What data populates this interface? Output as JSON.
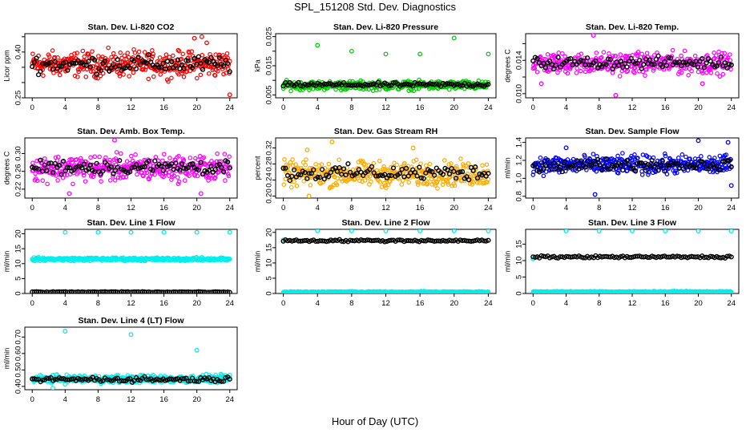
{
  "figure": {
    "title": "SPL_151208  Std. Dev. Diagnostics",
    "xlabel": "Hour of Day (UTC)"
  },
  "chart_data": [
    {
      "type": "scatter",
      "title": "Stan. Dev. Li-820 CO2",
      "ylabel": "Licor ppm",
      "xlim": [
        -0.9,
        24.9
      ],
      "ylim": [
        0.25,
        0.46
      ],
      "xticks": [
        0,
        4,
        8,
        12,
        16,
        20,
        24
      ],
      "yticks": [
        0.25,
        0.3,
        0.35,
        0.4,
        0.45
      ],
      "yticklabels": [
        "0.25",
        "",
        "",
        "0.40",
        ""
      ],
      "series": [
        {
          "color": "#ff0000",
          "role": "primary",
          "x": [
            0,
            24
          ],
          "y_band": [
            0.3,
            0.42
          ],
          "outliers": [
            [
              19.7,
              0.445
            ],
            [
              20.6,
              0.45
            ],
            [
              21.2,
              0.43
            ],
            [
              24,
              0.26
            ]
          ]
        },
        {
          "color": "#000000",
          "role": "hourly",
          "x": [
            0,
            24
          ],
          "y_band": [
            0.32,
            0.4
          ],
          "outliers": []
        }
      ]
    },
    {
      "type": "scatter",
      "title": "Stan. Dev. Li-820 Pressure",
      "ylabel": "kPa",
      "xlim": [
        -0.9,
        24.9
      ],
      "ylim": [
        0.004,
        0.026
      ],
      "xticks": [
        0,
        4,
        8,
        12,
        16,
        20,
        24
      ],
      "yticks": [
        0.005,
        0.01,
        0.015,
        0.02,
        0.025
      ],
      "yticklabels": [
        "0.005",
        "",
        "0.015",
        "",
        "0.025"
      ],
      "series": [
        {
          "color": "#00cc00",
          "role": "primary",
          "x": [
            0,
            24
          ],
          "y_band": [
            0.006,
            0.0105
          ],
          "outliers": [
            [
              4,
              0.022
            ],
            [
              8,
              0.02
            ],
            [
              12,
              0.019
            ],
            [
              16,
              0.019
            ],
            [
              20,
              0.0245
            ],
            [
              24,
              0.019
            ]
          ]
        },
        {
          "color": "#000000",
          "role": "hourly",
          "x": [
            0,
            24
          ],
          "y_band": [
            0.0075,
            0.0095
          ],
          "outliers": []
        }
      ]
    },
    {
      "type": "scatter",
      "title": "Stan. Dev. Li-820 Temp.",
      "ylabel": "degrees C",
      "xlim": [
        -0.9,
        24.9
      ],
      "ylim": [
        0.0095,
        0.0172
      ],
      "xticks": [
        0,
        4,
        8,
        12,
        16,
        20,
        24
      ],
      "yticks": [
        0.01,
        0.012,
        0.014,
        0.016
      ],
      "yticklabels": [
        "0.010",
        "",
        "0.014",
        ""
      ],
      "series": [
        {
          "color": "#ff00ff",
          "role": "primary",
          "x": [
            0,
            24
          ],
          "y_band": [
            0.0118,
            0.0155
          ],
          "outliers": [
            [
              7.3,
              0.017
            ],
            [
              10,
              0.0098
            ],
            [
              1,
              0.0112
            ],
            [
              20.5,
              0.0112
            ]
          ]
        },
        {
          "color": "#000000",
          "role": "hourly",
          "x": [
            0,
            24
          ],
          "y_band": [
            0.0127,
            0.0147
          ],
          "outliers": []
        }
      ]
    },
    {
      "type": "scatter",
      "title": "Stan. Dev. Amb. Box Temp.",
      "ylabel": "degrees C",
      "xlim": [
        -0.9,
        24.9
      ],
      "ylim": [
        0.2,
        0.335
      ],
      "xticks": [
        0,
        4,
        8,
        12,
        16,
        20,
        24
      ],
      "yticks": [
        0.22,
        0.26,
        0.3
      ],
      "yticklabels": [
        "0.22",
        "0.26",
        "0.30"
      ],
      "series": [
        {
          "color": "#ff00ff",
          "role": "primary",
          "x": [
            0,
            24
          ],
          "y_band": [
            0.225,
            0.31
          ],
          "outliers": [
            [
              10,
              0.33
            ],
            [
              4.5,
              0.21
            ],
            [
              20.5,
              0.21
            ]
          ]
        },
        {
          "color": "#000000",
          "role": "hourly",
          "x": [
            0,
            24
          ],
          "y_band": [
            0.245,
            0.295
          ],
          "outliers": []
        }
      ]
    },
    {
      "type": "scatter",
      "title": "Stan. Dev. Gas Stream RH",
      "ylabel": "percent",
      "xlim": [
        -0.9,
        24.9
      ],
      "ylim": [
        0.195,
        0.345
      ],
      "xticks": [
        0,
        4,
        8,
        12,
        16,
        20,
        24
      ],
      "yticks": [
        0.2,
        0.24,
        0.28,
        0.32
      ],
      "yticklabels": [
        "0.20",
        "0.24",
        "0.28",
        "0.32"
      ],
      "series": [
        {
          "color": "#ffaa00",
          "role": "primary",
          "x": [
            0,
            24
          ],
          "y_band": [
            0.21,
            0.3
          ],
          "outliers": [
            [
              2.8,
              0.315
            ],
            [
              5.7,
              0.335
            ],
            [
              15.2,
              0.32
            ],
            [
              3,
              0.2
            ]
          ]
        },
        {
          "color": "#000000",
          "role": "hourly",
          "x": [
            0,
            24
          ],
          "y_band": [
            0.23,
            0.285
          ],
          "outliers": []
        }
      ]
    },
    {
      "type": "scatter",
      "title": "Stan. Dev. Sample Flow",
      "ylabel": "ml/min",
      "xlim": [
        -0.9,
        24.9
      ],
      "ylim": [
        0.78,
        1.45
      ],
      "xticks": [
        0,
        4,
        8,
        12,
        16,
        20,
        24
      ],
      "yticks": [
        0.8,
        1.0,
        1.2,
        1.4
      ],
      "yticklabels": [
        "0.8",
        "1.0",
        "1.2",
        "1.4"
      ],
      "series": [
        {
          "color": "#0000ff",
          "role": "primary",
          "x": [
            0,
            24
          ],
          "y_band": [
            1.0,
            1.3
          ],
          "outliers": [
            [
              7.5,
              0.82
            ],
            [
              20,
              1.42
            ],
            [
              23.6,
              1.4
            ],
            [
              4,
              1.34
            ],
            [
              24,
              0.92
            ]
          ]
        },
        {
          "color": "#000000",
          "role": "hourly",
          "x": [
            0,
            24
          ],
          "y_band": [
            1.05,
            1.25
          ],
          "outliers": []
        }
      ]
    },
    {
      "type": "scatter",
      "title": "Stan. Dev. Line 1 Flow",
      "ylabel": "ml/min",
      "xlim": [
        -0.9,
        24.9
      ],
      "ylim": [
        0,
        21.5
      ],
      "xticks": [
        0,
        4,
        8,
        12,
        16,
        20,
        24
      ],
      "yticks": [
        0,
        5,
        10,
        15,
        20
      ],
      "yticklabels": [
        "0",
        "5",
        "10",
        "15",
        "20"
      ],
      "series": [
        {
          "color": "#00eeee",
          "role": "primary",
          "x": [
            0,
            24
          ],
          "y_band": [
            10.7,
            12.3
          ],
          "outliers": [
            [
              4,
              20.5
            ],
            [
              8,
              20.5
            ],
            [
              12,
              20.5
            ],
            [
              16,
              20.5
            ],
            [
              20,
              20.5
            ],
            [
              24,
              20.5
            ]
          ]
        },
        {
          "color": "#000000",
          "role": "hourly",
          "x": [
            0,
            24
          ],
          "y_band": [
            0.3,
            0.7
          ],
          "outliers": []
        }
      ]
    },
    {
      "type": "scatter",
      "title": "Stan. Dev. Line 2 Flow",
      "ylabel": "ml/min",
      "xlim": [
        -0.9,
        24.9
      ],
      "ylim": [
        0,
        21
      ],
      "xticks": [
        0,
        4,
        8,
        12,
        16,
        20,
        24
      ],
      "yticks": [
        0,
        5,
        10,
        15,
        20
      ],
      "yticklabels": [
        "0",
        "5",
        "10",
        "15",
        "20"
      ],
      "series": [
        {
          "color": "#00eeee",
          "role": "primary",
          "x": [
            0,
            24
          ],
          "y_band": [
            0.2,
            0.8
          ],
          "outliers": [
            [
              0,
              17.5
            ],
            [
              4,
              20.5
            ],
            [
              8,
              20.5
            ],
            [
              12,
              20.5
            ],
            [
              16,
              20.5
            ],
            [
              20,
              20.5
            ],
            [
              24,
              20.5
            ]
          ]
        },
        {
          "color": "#000000",
          "role": "hourly",
          "x": [
            0,
            24
          ],
          "y_band": [
            16.8,
            17.8
          ],
          "outliers": []
        }
      ]
    },
    {
      "type": "scatter",
      "title": "Stan. Dev. Line 3 Flow",
      "ylabel": "ml/min",
      "xlim": [
        -0.9,
        24.9
      ],
      "ylim": [
        0,
        19.5
      ],
      "xticks": [
        0,
        4,
        8,
        12,
        16,
        20,
        24
      ],
      "yticks": [
        0,
        5,
        10,
        15
      ],
      "yticklabels": [
        "0",
        "5",
        "10",
        "15"
      ],
      "series": [
        {
          "color": "#00eeee",
          "role": "primary",
          "x": [
            0,
            24
          ],
          "y_band": [
            0.2,
            0.8
          ],
          "outliers": [
            [
              0,
              10.5
            ],
            [
              4,
              19
            ],
            [
              8,
              19
            ],
            [
              12,
              19
            ],
            [
              16,
              19
            ],
            [
              20,
              19
            ],
            [
              24,
              19
            ]
          ]
        },
        {
          "color": "#000000",
          "role": "hourly",
          "x": [
            0,
            24
          ],
          "y_band": [
            10.6,
            11.6
          ],
          "outliers": []
        }
      ]
    },
    {
      "type": "scatter",
      "title": "Stan. Dev. Line 4 (LT) Flow",
      "ylabel": "ml/min",
      "xlim": [
        -0.9,
        24.9
      ],
      "ylim": [
        0.38,
        0.76
      ],
      "xticks": [
        0,
        4,
        8,
        12,
        16,
        20,
        24
      ],
      "yticks": [
        0.4,
        0.5,
        0.6,
        0.7
      ],
      "yticklabels": [
        "0.40",
        "0.50",
        "0.60",
        "0.70"
      ],
      "series": [
        {
          "color": "#00eeee",
          "role": "primary",
          "x": [
            0,
            24
          ],
          "y_band": [
            0.41,
            0.48
          ],
          "outliers": [
            [
              4,
              0.735
            ],
            [
              12,
              0.715
            ],
            [
              20,
              0.62
            ],
            [
              2.5,
              0.39
            ]
          ]
        },
        {
          "color": "#000000",
          "role": "hourly",
          "x": [
            0,
            24
          ],
          "y_band": [
            0.42,
            0.465
          ],
          "outliers": []
        }
      ]
    }
  ]
}
